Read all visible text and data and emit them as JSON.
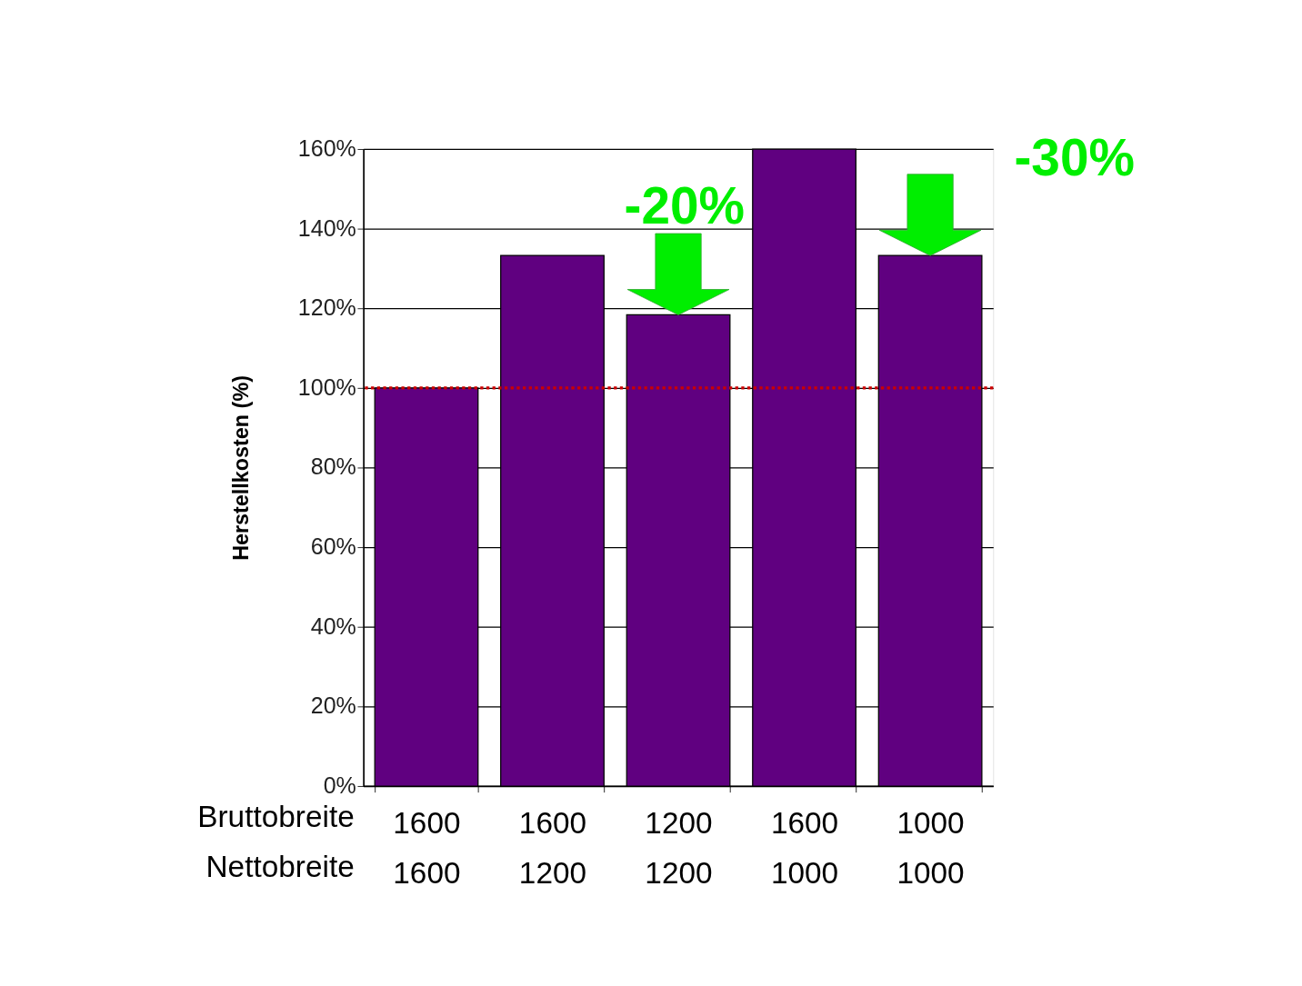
{
  "chart_data": {
    "type": "bar",
    "ylabel": "Herstellkosten (%)",
    "categories": [
      "1600\n1600",
      "1600\n1200",
      "1200\n1200",
      "1600\n1000",
      "1000\n1000"
    ],
    "values": [
      100,
      133.3,
      118.4,
      160,
      133.3
    ],
    "color": "#600080",
    "ylim": [
      0,
      160
    ],
    "yticks": [
      {
        "value": 0,
        "label": "0%"
      },
      {
        "value": 20,
        "label": "20%"
      },
      {
        "value": 40,
        "label": "40%"
      },
      {
        "value": 60,
        "label": "60%"
      },
      {
        "value": 80,
        "label": "80%"
      },
      {
        "value": 100,
        "label": "100%"
      },
      {
        "value": 120,
        "label": "120%"
      },
      {
        "value": 140,
        "label": "140%"
      },
      {
        "value": 160,
        "label": "160%"
      }
    ],
    "grid": "y",
    "ref_lines": [
      {
        "axis": "y",
        "value": 100,
        "color": "#cc0000",
        "line_style": "dotted"
      }
    ],
    "annotations": [
      "Bruttobreite",
      "Nettobreite",
      {
        "text": "-20%",
        "x": "1200\n1200",
        "y": 118.4
      },
      {
        "text": "-30%",
        "x": "1000\n1000",
        "y": 133.3
      }
    ]
  }
}
